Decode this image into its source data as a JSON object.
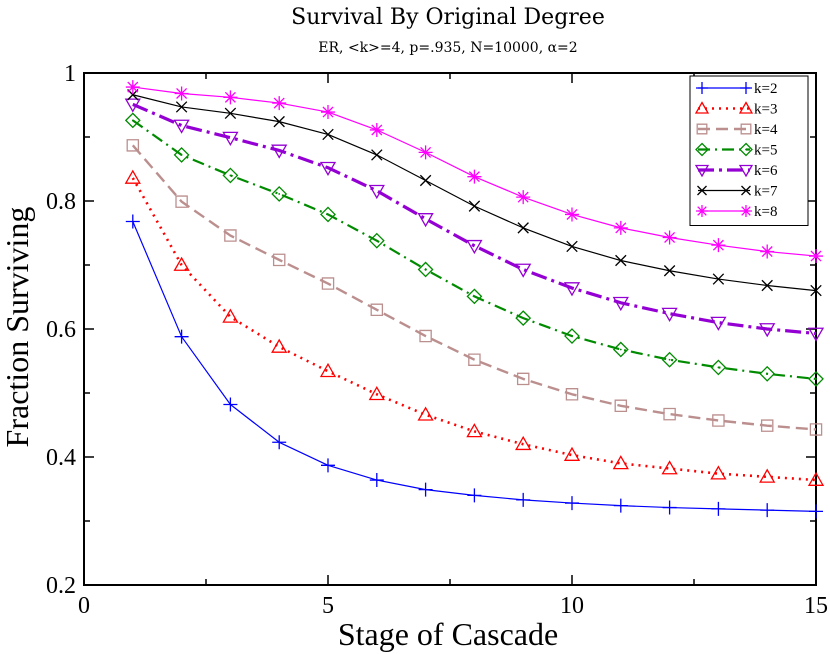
{
  "chart_data": {
    "type": "line",
    "title": "Survival By Original Degree",
    "subtitle": "ER, <k>=4, p=.935, N=10000, α=2",
    "xlabel": "Stage of Cascade",
    "ylabel": "Fraction Surviving",
    "xlim": [
      0,
      15
    ],
    "ylim": [
      0.2,
      1.0
    ],
    "xticks": [
      0,
      5,
      10,
      15
    ],
    "xtick_labels": [
      "0",
      "5",
      "10",
      "15"
    ],
    "yticks": [
      0.2,
      0.4,
      0.6,
      0.8,
      1.0
    ],
    "ytick_labels": [
      "0.2",
      "0.4",
      "0.6",
      "0.8",
      "1"
    ],
    "grid": false,
    "legend_position": "top-right",
    "x": [
      1,
      2,
      3,
      4,
      5,
      6,
      7,
      8,
      9,
      10,
      11,
      12,
      13,
      14,
      15
    ],
    "series": [
      {
        "name": "k=2",
        "color": "#0000ff",
        "dash": "solid",
        "marker": "plus",
        "values": [
          0.768,
          0.588,
          0.482,
          0.423,
          0.387,
          0.364,
          0.349,
          0.34,
          0.333,
          0.328,
          0.324,
          0.321,
          0.319,
          0.317,
          0.315
        ]
      },
      {
        "name": "k=3",
        "color": "#ff0000",
        "dash": "dot",
        "marker": "triangle-up",
        "values": [
          0.836,
          0.7,
          0.619,
          0.572,
          0.534,
          0.498,
          0.466,
          0.44,
          0.42,
          0.403,
          0.39,
          0.382,
          0.374,
          0.369,
          0.364
        ]
      },
      {
        "name": "k=4",
        "color": "#bc8f8f",
        "dash": "dash",
        "marker": "square",
        "values": [
          0.887,
          0.799,
          0.746,
          0.708,
          0.671,
          0.63,
          0.589,
          0.552,
          0.522,
          0.498,
          0.48,
          0.467,
          0.457,
          0.449,
          0.443
        ]
      },
      {
        "name": "k=5",
        "color": "#008b00",
        "dash": "dashdot",
        "marker": "diamond",
        "values": [
          0.926,
          0.872,
          0.84,
          0.811,
          0.779,
          0.738,
          0.693,
          0.651,
          0.617,
          0.589,
          0.568,
          0.552,
          0.54,
          0.53,
          0.522
        ]
      },
      {
        "name": "k=6",
        "color": "#9400d3",
        "dash": "longdashdot",
        "marker": "triangle-down",
        "values": [
          0.951,
          0.918,
          0.899,
          0.879,
          0.852,
          0.816,
          0.772,
          0.73,
          0.693,
          0.664,
          0.641,
          0.624,
          0.61,
          0.6,
          0.593
        ]
      },
      {
        "name": "k=7",
        "color": "#000000",
        "dash": "solid",
        "marker": "x",
        "values": [
          0.966,
          0.947,
          0.937,
          0.924,
          0.904,
          0.872,
          0.832,
          0.792,
          0.758,
          0.729,
          0.707,
          0.691,
          0.678,
          0.668,
          0.66
        ]
      },
      {
        "name": "k=8",
        "color": "#ff00ff",
        "dash": "solid",
        "marker": "star",
        "values": [
          0.978,
          0.968,
          0.962,
          0.953,
          0.939,
          0.911,
          0.876,
          0.838,
          0.806,
          0.779,
          0.758,
          0.743,
          0.731,
          0.721,
          0.714
        ]
      }
    ]
  }
}
